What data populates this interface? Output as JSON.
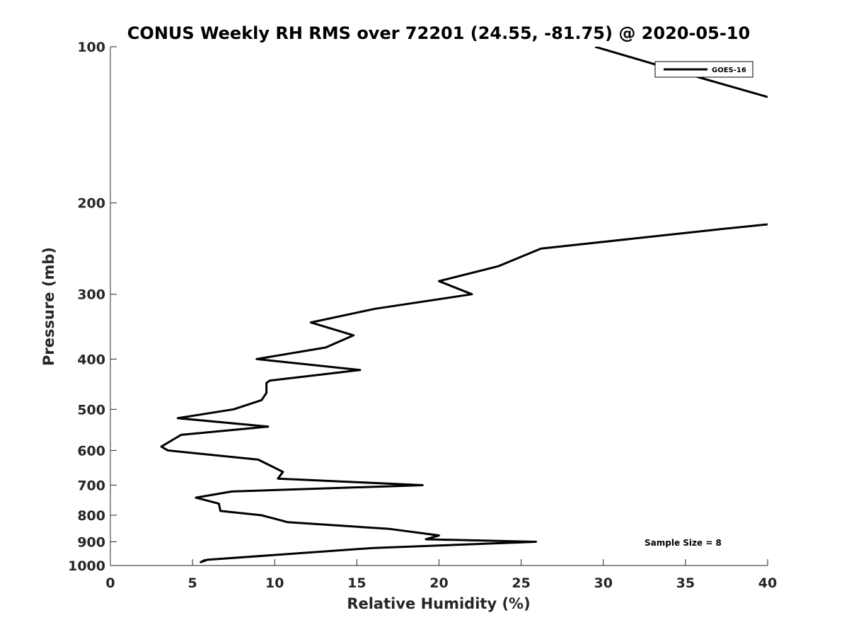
{
  "chart_data": {
    "type": "line",
    "title": "CONUS Weekly RH RMS over 72201 (24.55, -81.75) @ 2020-05-10",
    "xlabel": "Relative Humidity (%)",
    "ylabel": "Pressure (mb)",
    "xlim": [
      0,
      40
    ],
    "ylim": [
      1000,
      100
    ],
    "y_scale": "log",
    "y_reversed": true,
    "x_ticks": [
      "0",
      "5",
      "10",
      "15",
      "20",
      "25",
      "30",
      "35",
      "40"
    ],
    "y_ticks": [
      "100",
      "200",
      "300",
      "400",
      "500",
      "600",
      "700",
      "800",
      "900",
      "1000"
    ],
    "grid": false,
    "legend_position": "top-right",
    "annotation": "Sample Size = 8",
    "series": [
      {
        "name": "GOES-16",
        "color": "#000000",
        "points": [
          [
            5.8,
            975
          ],
          [
            5.5,
            985
          ],
          [
            5.9,
            975
          ],
          [
            16,
            925
          ],
          [
            25.9,
            900
          ],
          [
            19.2,
            890
          ],
          [
            20,
            875
          ],
          [
            17,
            850
          ],
          [
            10.8,
            825
          ],
          [
            9.2,
            800
          ],
          [
            6.7,
            785
          ],
          [
            6.6,
            760
          ],
          [
            5.2,
            740
          ],
          [
            7.4,
            720
          ],
          [
            19,
            700
          ],
          [
            10.2,
            680
          ],
          [
            10.5,
            660
          ],
          [
            9,
            625
          ],
          [
            3.5,
            600
          ],
          [
            3.1,
            590
          ],
          [
            4.3,
            560
          ],
          [
            9.6,
            540
          ],
          [
            4.1,
            520
          ],
          [
            7.5,
            500
          ],
          [
            9.2,
            480
          ],
          [
            9.5,
            465
          ],
          [
            9.5,
            445
          ],
          [
            9.7,
            440
          ],
          [
            15.2,
            420
          ],
          [
            8.9,
            400
          ],
          [
            13.1,
            380
          ],
          [
            14.8,
            360
          ],
          [
            12.2,
            340
          ],
          [
            16.1,
            320
          ],
          [
            22,
            300
          ],
          [
            20,
            283
          ],
          [
            23.6,
            265
          ],
          [
            26.2,
            245
          ],
          [
            37,
            225
          ],
          [
            40,
            220
          ]
        ]
      },
      {
        "name": "GOES-16",
        "color": "#000000",
        "points": [
          [
            29.5,
            100
          ],
          [
            36,
            115
          ],
          [
            40,
            125
          ]
        ]
      }
    ]
  }
}
